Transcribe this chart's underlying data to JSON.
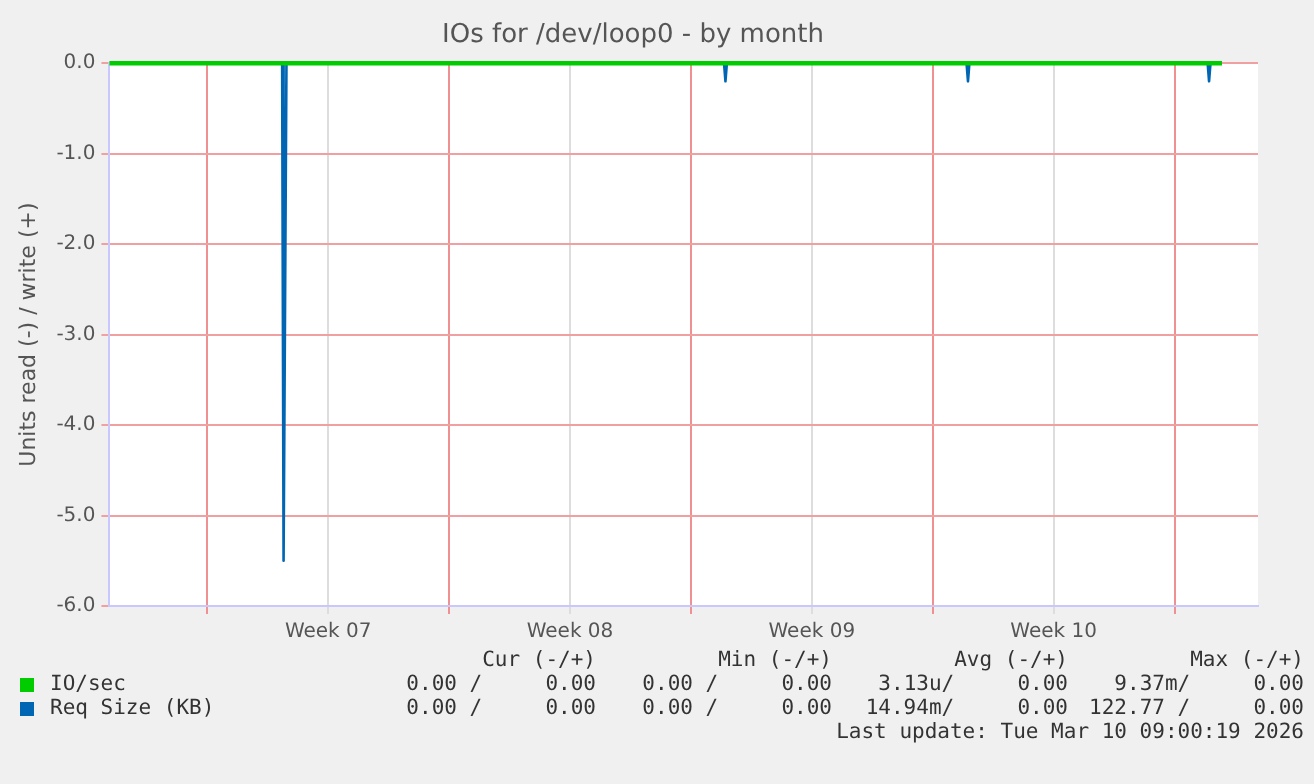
{
  "chart_data": {
    "type": "line",
    "title": "IOs for /dev/loop0 - by month",
    "ylabel": "Units read (-) / write (+)",
    "xlim": [
      "2026-02-06T04:00",
      "2026-03-11T10:00"
    ],
    "xticks": [
      {
        "value": "2026-02-09",
        "label": null
      },
      {
        "value": "2026-02-12T12:00",
        "label": "Week 07"
      },
      {
        "value": "2026-02-16",
        "label": null
      },
      {
        "value": "2026-02-19T12:00",
        "label": "Week 08"
      },
      {
        "value": "2026-02-23",
        "label": null
      },
      {
        "value": "2026-02-26T12:00",
        "label": "Week 09"
      },
      {
        "value": "2026-03-02",
        "label": null
      },
      {
        "value": "2026-03-05T12:00",
        "label": "Week 10"
      },
      {
        "value": "2026-03-09",
        "label": null
      }
    ],
    "ylim": [
      -6,
      0
    ],
    "yticks": [
      {
        "value": -6,
        "label": "-6.0"
      },
      {
        "value": -5,
        "label": "-5.0"
      },
      {
        "value": -4,
        "label": "-4.0"
      },
      {
        "value": -3,
        "label": "-3.0"
      },
      {
        "value": -2,
        "label": "-2.0"
      },
      {
        "value": -1,
        "label": "-1.0"
      },
      {
        "value": 0,
        "label": "0.0"
      }
    ],
    "grid": true,
    "legend": "bottom",
    "marker": "none",
    "line_style": "solid",
    "series": [
      {
        "name": "IO/sec",
        "color": "#00cc00",
        "x": [
          "2026-02-06T04:00",
          "2026-03-10T09:00"
        ],
        "values": [
          0,
          0
        ]
      },
      {
        "name": "Req Size (KB)",
        "color": "#0066b3",
        "x": [
          "2026-02-11T04:00",
          "2026-02-11T05:00",
          "2026-02-11T07:00",
          "2026-02-23T23:00",
          "2026-02-24T00:00",
          "2026-02-24T01:00",
          "2026-03-02T23:30",
          "2026-03-03T00:30",
          "2026-03-03T01:30",
          "2026-03-09T23:00",
          "2026-03-10T00:00",
          "2026-03-10T01:00",
          "2026-03-10T09:00"
        ],
        "values": [
          0,
          -5.5,
          0,
          0,
          -0.2,
          0,
          0,
          -0.2,
          0,
          0,
          -0.2,
          0,
          0
        ]
      }
    ],
    "annotations": [
      "Cur (-/+)",
      "Min (-/+)",
      "Avg (-/+)",
      "Max (-/+)",
      "0.00 /     0.00",
      "0.00 /     0.00",
      "3.13u/     0.00",
      "9.37m/     0.00",
      "0.00 /     0.00",
      "0.00 /     0.00",
      "14.94m/     0.00",
      "122.77 /     0.00",
      "Last update: Tue Mar 10 09:00:19 2026"
    ]
  }
}
